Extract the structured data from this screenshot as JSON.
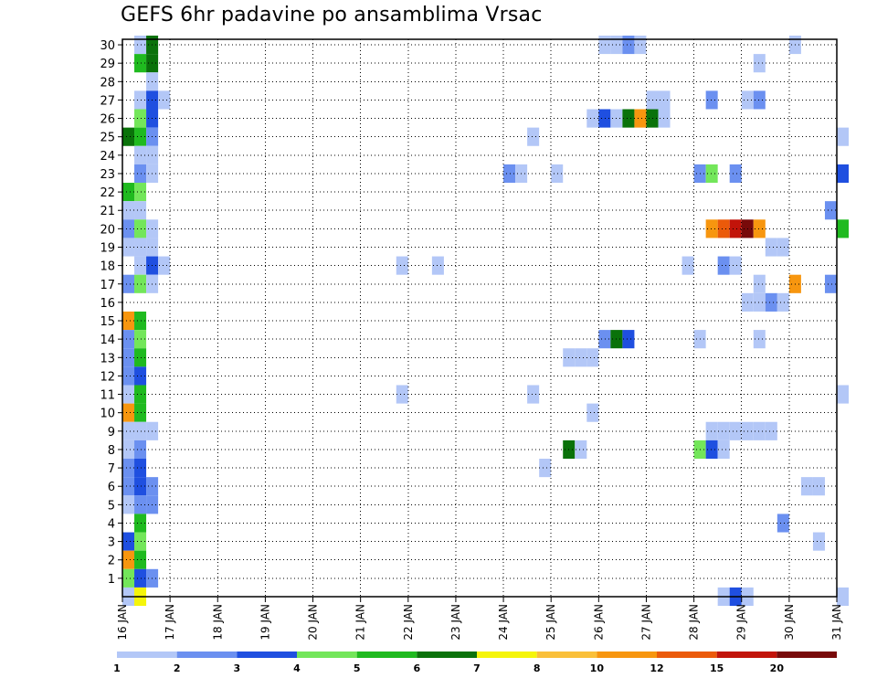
{
  "chart_data": {
    "type": "heatmap",
    "title": "GEFS 6hr padavine po ansamblima Vrsac",
    "xlabel": "",
    "ylabel": "",
    "x_tick_labels": [
      "16 JAN",
      "17 JAN",
      "18 JAN",
      "19 JAN",
      "20 JAN",
      "21 JAN",
      "22 JAN",
      "23 JAN",
      "24 JAN",
      "25 JAN",
      "26 JAN",
      "27 JAN",
      "28 JAN",
      "29 JAN",
      "30 JAN",
      "31 JAN"
    ],
    "x_range_days": [
      16,
      31
    ],
    "y_tick_labels": [
      "1",
      "2",
      "3",
      "4",
      "5",
      "6",
      "7",
      "8",
      "9",
      "10",
      "11",
      "12",
      "13",
      "14",
      "15",
      "16",
      "17",
      "18",
      "19",
      "20",
      "21",
      "22",
      "23",
      "24",
      "25",
      "26",
      "27",
      "28",
      "29",
      "30"
    ],
    "y_range_members": [
      0,
      30
    ],
    "grid": true,
    "colorbar": {
      "labels": [
        "1",
        "2",
        "3",
        "4",
        "5",
        "6",
        "7",
        "8",
        "10",
        "12",
        "15",
        "20"
      ],
      "colors": [
        "#b3c7f7",
        "#6b90f0",
        "#1f4fe0",
        "#73e65a",
        "#1fba1f",
        "#0a720a",
        "#f5f50a",
        "#fac03a",
        "#f7960f",
        "#eb5a0a",
        "#c2140a",
        "#780a0a"
      ]
    },
    "cells": [
      {
        "m": 30,
        "d": 16.25,
        "c": 1
      },
      {
        "m": 30,
        "d": 16.5,
        "c": 6
      },
      {
        "m": 30,
        "d": 26.0,
        "c": 1
      },
      {
        "m": 30,
        "d": 26.25,
        "c": 1
      },
      {
        "m": 30,
        "d": 26.5,
        "c": 2
      },
      {
        "m": 30,
        "d": 26.75,
        "c": 1
      },
      {
        "m": 30,
        "d": 30.0,
        "c": 1
      },
      {
        "m": 29,
        "d": 16.25,
        "c": 5
      },
      {
        "m": 29,
        "d": 16.5,
        "c": 6
      },
      {
        "m": 29,
        "d": 29.25,
        "c": 1
      },
      {
        "m": 28,
        "d": 16.5,
        "c": 1
      },
      {
        "m": 27,
        "d": 16.25,
        "c": 1
      },
      {
        "m": 27,
        "d": 16.5,
        "c": 3
      },
      {
        "m": 27,
        "d": 16.75,
        "c": 1
      },
      {
        "m": 27,
        "d": 27.0,
        "c": 1
      },
      {
        "m": 27,
        "d": 27.25,
        "c": 1
      },
      {
        "m": 27,
        "d": 28.25,
        "c": 2
      },
      {
        "m": 27,
        "d": 29.0,
        "c": 1
      },
      {
        "m": 27,
        "d": 29.25,
        "c": 2
      },
      {
        "m": 26,
        "d": 16.25,
        "c": 4
      },
      {
        "m": 26,
        "d": 16.5,
        "c": 3
      },
      {
        "m": 26,
        "d": 25.75,
        "c": 1
      },
      {
        "m": 26,
        "d": 26.0,
        "c": 3
      },
      {
        "m": 26,
        "d": 26.25,
        "c": 1
      },
      {
        "m": 26,
        "d": 26.5,
        "c": 6
      },
      {
        "m": 26,
        "d": 26.75,
        "c": 9
      },
      {
        "m": 26,
        "d": 27.0,
        "c": 6
      },
      {
        "m": 26,
        "d": 27.25,
        "c": 1
      },
      {
        "m": 25,
        "d": 16.0,
        "c": 6
      },
      {
        "m": 25,
        "d": 16.25,
        "c": 5
      },
      {
        "m": 25,
        "d": 16.5,
        "c": 2
      },
      {
        "m": 25,
        "d": 24.5,
        "c": 1
      },
      {
        "m": 25,
        "d": 31.0,
        "c": 1
      },
      {
        "m": 24,
        "d": 16.25,
        "c": 1
      },
      {
        "m": 24,
        "d": 16.5,
        "c": 1
      },
      {
        "m": 23,
        "d": 16.25,
        "c": 2
      },
      {
        "m": 23,
        "d": 16.5,
        "c": 1
      },
      {
        "m": 23,
        "d": 24.0,
        "c": 2
      },
      {
        "m": 23,
        "d": 24.25,
        "c": 1
      },
      {
        "m": 23,
        "d": 25.0,
        "c": 1
      },
      {
        "m": 23,
        "d": 28.0,
        "c": 2
      },
      {
        "m": 23,
        "d": 28.25,
        "c": 4
      },
      {
        "m": 23,
        "d": 28.75,
        "c": 2
      },
      {
        "m": 23,
        "d": 31.0,
        "c": 3
      },
      {
        "m": 22,
        "d": 16.0,
        "c": 5
      },
      {
        "m": 22,
        "d": 16.25,
        "c": 4
      },
      {
        "m": 21,
        "d": 16.0,
        "c": 1
      },
      {
        "m": 21,
        "d": 16.25,
        "c": 1
      },
      {
        "m": 21,
        "d": 30.75,
        "c": 2
      },
      {
        "m": 20,
        "d": 16.0,
        "c": 2
      },
      {
        "m": 20,
        "d": 16.25,
        "c": 4
      },
      {
        "m": 20,
        "d": 16.5,
        "c": 1
      },
      {
        "m": 20,
        "d": 28.25,
        "c": 9
      },
      {
        "m": 20,
        "d": 28.5,
        "c": 10
      },
      {
        "m": 20,
        "d": 28.75,
        "c": 11
      },
      {
        "m": 20,
        "d": 29.0,
        "c": 12
      },
      {
        "m": 20,
        "d": 29.25,
        "c": 9
      },
      {
        "m": 20,
        "d": 31.0,
        "c": 5
      },
      {
        "m": 19,
        "d": 16.0,
        "c": 1
      },
      {
        "m": 19,
        "d": 16.25,
        "c": 1
      },
      {
        "m": 19,
        "d": 16.5,
        "c": 1
      },
      {
        "m": 19,
        "d": 29.5,
        "c": 1
      },
      {
        "m": 19,
        "d": 29.75,
        "c": 1
      },
      {
        "m": 18,
        "d": 16.25,
        "c": 1
      },
      {
        "m": 18,
        "d": 16.5,
        "c": 3
      },
      {
        "m": 18,
        "d": 16.75,
        "c": 1
      },
      {
        "m": 18,
        "d": 21.75,
        "c": 1
      },
      {
        "m": 18,
        "d": 22.5,
        "c": 1
      },
      {
        "m": 18,
        "d": 27.75,
        "c": 1
      },
      {
        "m": 18,
        "d": 28.5,
        "c": 2
      },
      {
        "m": 18,
        "d": 28.75,
        "c": 1
      },
      {
        "m": 17,
        "d": 16.0,
        "c": 2
      },
      {
        "m": 17,
        "d": 16.25,
        "c": 4
      },
      {
        "m": 17,
        "d": 16.5,
        "c": 1
      },
      {
        "m": 17,
        "d": 29.25,
        "c": 1
      },
      {
        "m": 17,
        "d": 30.0,
        "c": 9
      },
      {
        "m": 17,
        "d": 30.75,
        "c": 2
      },
      {
        "m": 16,
        "d": 29.0,
        "c": 1
      },
      {
        "m": 16,
        "d": 29.25,
        "c": 1
      },
      {
        "m": 16,
        "d": 29.5,
        "c": 2
      },
      {
        "m": 16,
        "d": 29.75,
        "c": 1
      },
      {
        "m": 15,
        "d": 16.0,
        "c": 9
      },
      {
        "m": 15,
        "d": 16.25,
        "c": 5
      },
      {
        "m": 14,
        "d": 16.0,
        "c": 2
      },
      {
        "m": 14,
        "d": 16.25,
        "c": 4
      },
      {
        "m": 14,
        "d": 26.0,
        "c": 2
      },
      {
        "m": 14,
        "d": 26.25,
        "c": 6
      },
      {
        "m": 14,
        "d": 26.5,
        "c": 3
      },
      {
        "m": 14,
        "d": 28.0,
        "c": 1
      },
      {
        "m": 14,
        "d": 29.25,
        "c": 1
      },
      {
        "m": 13,
        "d": 16.0,
        "c": 2
      },
      {
        "m": 13,
        "d": 16.25,
        "c": 5
      },
      {
        "m": 13,
        "d": 25.25,
        "c": 1
      },
      {
        "m": 13,
        "d": 25.5,
        "c": 1
      },
      {
        "m": 13,
        "d": 25.75,
        "c": 1
      },
      {
        "m": 12,
        "d": 16.0,
        "c": 2
      },
      {
        "m": 12,
        "d": 16.25,
        "c": 3
      },
      {
        "m": 11,
        "d": 16.0,
        "c": 1
      },
      {
        "m": 11,
        "d": 16.25,
        "c": 5
      },
      {
        "m": 11,
        "d": 21.75,
        "c": 1
      },
      {
        "m": 11,
        "d": 24.5,
        "c": 1
      },
      {
        "m": 11,
        "d": 31.0,
        "c": 1
      },
      {
        "m": 10,
        "d": 16.0,
        "c": 9
      },
      {
        "m": 10,
        "d": 16.25,
        "c": 5
      },
      {
        "m": 10,
        "d": 25.75,
        "c": 1
      },
      {
        "m": 9,
        "d": 16.0,
        "c": 1
      },
      {
        "m": 9,
        "d": 16.25,
        "c": 1
      },
      {
        "m": 9,
        "d": 16.5,
        "c": 1
      },
      {
        "m": 9,
        "d": 28.25,
        "c": 1
      },
      {
        "m": 9,
        "d": 28.5,
        "c": 1
      },
      {
        "m": 9,
        "d": 28.75,
        "c": 1
      },
      {
        "m": 9,
        "d": 29.0,
        "c": 1
      },
      {
        "m": 9,
        "d": 29.25,
        "c": 1
      },
      {
        "m": 9,
        "d": 29.5,
        "c": 1
      },
      {
        "m": 8,
        "d": 16.0,
        "c": 1
      },
      {
        "m": 8,
        "d": 16.25,
        "c": 2
      },
      {
        "m": 8,
        "d": 25.25,
        "c": 6
      },
      {
        "m": 8,
        "d": 25.5,
        "c": 1
      },
      {
        "m": 8,
        "d": 28.0,
        "c": 4
      },
      {
        "m": 8,
        "d": 28.25,
        "c": 3
      },
      {
        "m": 8,
        "d": 28.5,
        "c": 1
      },
      {
        "m": 7,
        "d": 16.0,
        "c": 2
      },
      {
        "m": 7,
        "d": 16.25,
        "c": 3
      },
      {
        "m": 7,
        "d": 24.75,
        "c": 1
      },
      {
        "m": 6,
        "d": 16.0,
        "c": 2
      },
      {
        "m": 6,
        "d": 16.25,
        "c": 3
      },
      {
        "m": 6,
        "d": 16.5,
        "c": 2
      },
      {
        "m": 6,
        "d": 30.25,
        "c": 1
      },
      {
        "m": 6,
        "d": 30.5,
        "c": 1
      },
      {
        "m": 5,
        "d": 16.0,
        "c": 1
      },
      {
        "m": 5,
        "d": 16.25,
        "c": 2
      },
      {
        "m": 5,
        "d": 16.5,
        "c": 2
      },
      {
        "m": 4,
        "d": 16.25,
        "c": 5
      },
      {
        "m": 4,
        "d": 29.75,
        "c": 2
      },
      {
        "m": 3,
        "d": 16.0,
        "c": 3
      },
      {
        "m": 3,
        "d": 16.25,
        "c": 4
      },
      {
        "m": 3,
        "d": 30.5,
        "c": 1
      },
      {
        "m": 2,
        "d": 16.0,
        "c": 9
      },
      {
        "m": 2,
        "d": 16.25,
        "c": 5
      },
      {
        "m": 1,
        "d": 16.0,
        "c": 4
      },
      {
        "m": 1,
        "d": 16.25,
        "c": 3
      },
      {
        "m": 1,
        "d": 16.5,
        "c": 2
      },
      {
        "m": 0,
        "d": 16.0,
        "c": 1
      },
      {
        "m": 0,
        "d": 16.25,
        "c": 7
      },
      {
        "m": 0,
        "d": 28.5,
        "c": 1
      },
      {
        "m": 0,
        "d": 28.75,
        "c": 3
      },
      {
        "m": 0,
        "d": 29.0,
        "c": 1
      },
      {
        "m": 0,
        "d": 31.0,
        "c": 1
      }
    ]
  }
}
